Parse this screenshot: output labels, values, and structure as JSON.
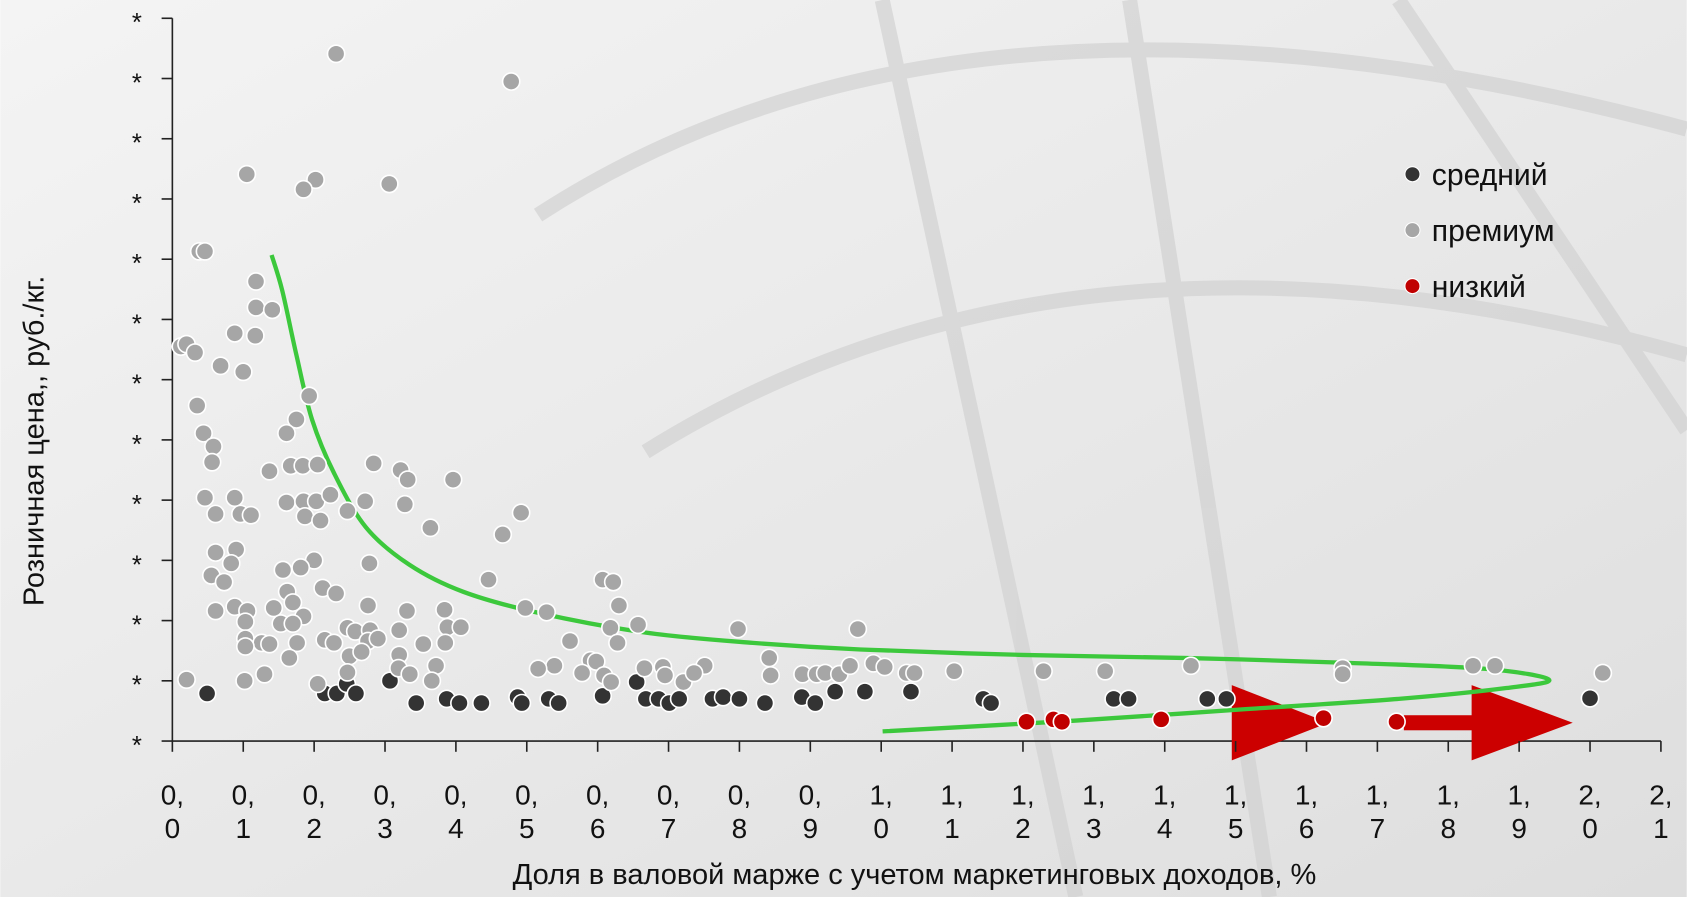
{
  "chart_data": {
    "type": "scatter",
    "xlabel": "Доля в валовой марже с учетом маркетинговых доходов, %",
    "ylabel": "Розничная цена,, руб./кг.",
    "xlim": [
      0,
      2.1
    ],
    "ylim": [
      0,
      12
    ],
    "xticks": [
      {
        "value": 0,
        "label": "0,\n0"
      },
      {
        "value": 0.1,
        "label": "0,\n1"
      },
      {
        "value": 0.2,
        "label": "0,\n2"
      },
      {
        "value": 0.3,
        "label": "0,\n3"
      },
      {
        "value": 0.4,
        "label": "0,\n4"
      },
      {
        "value": 0.5,
        "label": "0,\n5"
      },
      {
        "value": 0.6,
        "label": "0,\n6"
      },
      {
        "value": 0.7,
        "label": "0,\n7"
      },
      {
        "value": 0.8,
        "label": "0,\n8"
      },
      {
        "value": 0.9,
        "label": "0,\n9"
      },
      {
        "value": 1.0,
        "label": "1,\n0"
      },
      {
        "value": 1.1,
        "label": "1,\n1"
      },
      {
        "value": 1.2,
        "label": "1,\n2"
      },
      {
        "value": 1.3,
        "label": "1,\n3"
      },
      {
        "value": 1.4,
        "label": "1,\n4"
      },
      {
        "value": 1.5,
        "label": "1,\n5"
      },
      {
        "value": 1.6,
        "label": "1,\n6"
      },
      {
        "value": 1.7,
        "label": "1,\n7"
      },
      {
        "value": 1.8,
        "label": "1,\n8"
      },
      {
        "value": 1.9,
        "label": "1,\n9"
      },
      {
        "value": 2.0,
        "label": "2,\n0"
      },
      {
        "value": 2.1,
        "label": "2,\n1"
      }
    ],
    "yticks": [
      {
        "value": 0,
        "label": "*"
      },
      {
        "value": 1,
        "label": "*"
      },
      {
        "value": 2,
        "label": "*"
      },
      {
        "value": 3,
        "label": "*"
      },
      {
        "value": 4,
        "label": "*"
      },
      {
        "value": 5,
        "label": "*"
      },
      {
        "value": 6,
        "label": "*"
      },
      {
        "value": 7,
        "label": "*"
      },
      {
        "value": 8,
        "label": "*"
      },
      {
        "value": 9,
        "label": "*"
      },
      {
        "value": 10,
        "label": "*"
      },
      {
        "value": 11,
        "label": "*"
      },
      {
        "value": 12,
        "label": "*"
      }
    ],
    "series": [
      {
        "name": "средний",
        "color": "#333333",
        "x": [
          0.049,
          0.215,
          0.232,
          0.246,
          0.259,
          0.307,
          0.344,
          0.387,
          0.405,
          0.436,
          0.487,
          0.493,
          0.531,
          0.545,
          0.607,
          0.655,
          0.668,
          0.686,
          0.701,
          0.715,
          0.762,
          0.777,
          0.8,
          0.836,
          0.888,
          0.907,
          0.935,
          0.977,
          1.042,
          1.144,
          1.155,
          1.328,
          1.349,
          1.46,
          1.487,
          2.0
        ],
        "values": [
          0.79,
          0.79,
          0.79,
          0.95,
          0.79,
          1.0,
          0.63,
          0.7,
          0.63,
          0.63,
          0.73,
          0.63,
          0.7,
          0.63,
          0.75,
          0.98,
          0.7,
          0.7,
          0.63,
          0.7,
          0.7,
          0.73,
          0.7,
          0.63,
          0.73,
          0.63,
          0.82,
          0.82,
          0.82,
          0.7,
          0.63,
          0.7,
          0.7,
          0.7,
          0.7,
          0.71
        ]
      },
      {
        "name": "премиум",
        "color": "#a6a6a6",
        "x": [
          0.231,
          0.478,
          0.105,
          0.202,
          0.185,
          0.306,
          0.038,
          0.046,
          0.118,
          0.118,
          0.141,
          0.117,
          0.088,
          0.068,
          0.1,
          0.012,
          0.02,
          0.032,
          0.035,
          0.044,
          0.058,
          0.056,
          0.193,
          0.175,
          0.161,
          0.137,
          0.167,
          0.184,
          0.205,
          0.284,
          0.322,
          0.332,
          0.396,
          0.046,
          0.088,
          0.096,
          0.111,
          0.061,
          0.161,
          0.185,
          0.203,
          0.223,
          0.247,
          0.187,
          0.209,
          0.272,
          0.328,
          0.364,
          0.466,
          0.492,
          0.09,
          0.061,
          0.083,
          0.055,
          0.073,
          0.156,
          0.2,
          0.181,
          0.278,
          0.446,
          0.607,
          0.622,
          0.162,
          0.212,
          0.231,
          0.088,
          0.061,
          0.106,
          0.143,
          0.17,
          0.185,
          0.276,
          0.331,
          0.384,
          0.498,
          0.528,
          0.63,
          0.103,
          0.103,
          0.126,
          0.153,
          0.17,
          0.247,
          0.258,
          0.279,
          0.32,
          0.388,
          0.407,
          0.618,
          0.657,
          0.798,
          0.967,
          0.103,
          0.137,
          0.176,
          0.165,
          0.215,
          0.228,
          0.276,
          0.29,
          0.354,
          0.385,
          0.561,
          0.628,
          0.25,
          0.267,
          0.32,
          0.372,
          0.539,
          0.59,
          0.598,
          0.02,
          0.102,
          0.13,
          0.205,
          0.247,
          0.319,
          0.335,
          0.366,
          0.516,
          0.578,
          0.609,
          0.619,
          0.666,
          0.692,
          0.695,
          0.721,
          0.751,
          0.736,
          0.842,
          0.844,
          0.889,
          0.909,
          0.921,
          0.941,
          0.956,
          0.989,
          1.005,
          1.036,
          1.047,
          1.103,
          1.229,
          1.316,
          1.437,
          1.651,
          1.651,
          1.835,
          1.866,
          2.018
        ],
        "values": [
          11.41,
          10.95,
          9.41,
          9.32,
          9.16,
          9.25,
          8.13,
          8.13,
          7.63,
          7.2,
          7.16,
          6.73,
          6.77,
          6.23,
          6.13,
          6.55,
          6.59,
          6.45,
          5.57,
          5.11,
          4.89,
          4.63,
          5.73,
          5.34,
          5.11,
          4.48,
          4.57,
          4.57,
          4.59,
          4.61,
          4.5,
          4.34,
          4.34,
          4.04,
          4.04,
          3.77,
          3.75,
          3.77,
          3.96,
          3.98,
          3.98,
          4.09,
          3.82,
          3.73,
          3.66,
          3.98,
          3.93,
          3.54,
          3.43,
          3.79,
          3.18,
          3.13,
          2.95,
          2.75,
          2.64,
          2.84,
          3.0,
          2.88,
          2.95,
          2.68,
          2.68,
          2.64,
          2.48,
          2.54,
          2.45,
          2.23,
          2.16,
          2.16,
          2.21,
          2.3,
          2.07,
          2.25,
          2.16,
          2.18,
          2.21,
          2.14,
          2.25,
          1.98,
          1.7,
          1.63,
          1.95,
          1.95,
          1.88,
          1.82,
          1.84,
          1.84,
          1.89,
          1.89,
          1.88,
          1.93,
          1.86,
          1.86,
          1.57,
          1.61,
          1.63,
          1.38,
          1.68,
          1.63,
          1.66,
          1.7,
          1.61,
          1.63,
          1.66,
          1.63,
          1.41,
          1.48,
          1.43,
          1.25,
          1.25,
          1.34,
          1.32,
          1.02,
          1.0,
          1.11,
          0.95,
          1.14,
          1.21,
          1.11,
          1.0,
          1.2,
          1.13,
          1.09,
          0.98,
          1.21,
          1.23,
          1.09,
          0.98,
          1.25,
          1.13,
          1.38,
          1.09,
          1.11,
          1.11,
          1.13,
          1.11,
          1.25,
          1.29,
          1.23,
          1.13,
          1.13,
          1.16,
          1.16,
          1.16,
          1.25,
          1.21,
          1.11,
          1.25,
          1.25,
          1.13
        ]
      },
      {
        "name": "низкий",
        "color": "#c00000",
        "x": [
          1.205,
          1.243,
          1.255,
          1.395,
          1.624,
          1.727
        ],
        "values": [
          0.32,
          0.36,
          0.32,
          0.36,
          0.38,
          0.32
        ]
      }
    ],
    "curve": {
      "color": "#3cc83c",
      "x": [
        0.14,
        0.155,
        0.175,
        0.197,
        0.228,
        0.273,
        0.334,
        0.41,
        0.516,
        0.668,
        0.819,
        0.971,
        1.199,
        1.426,
        1.654,
        1.851,
        1.942,
        1.882,
        1.73,
        1.502,
        1.275,
        1.002
      ],
      "y": [
        8.07,
        7.48,
        6.41,
        5.34,
        4.45,
        3.55,
        2.93,
        2.48,
        2.13,
        1.8,
        1.63,
        1.52,
        1.43,
        1.38,
        1.3,
        1.2,
        1.02,
        0.88,
        0.7,
        0.52,
        0.34,
        0.16
      ]
    }
  }
}
